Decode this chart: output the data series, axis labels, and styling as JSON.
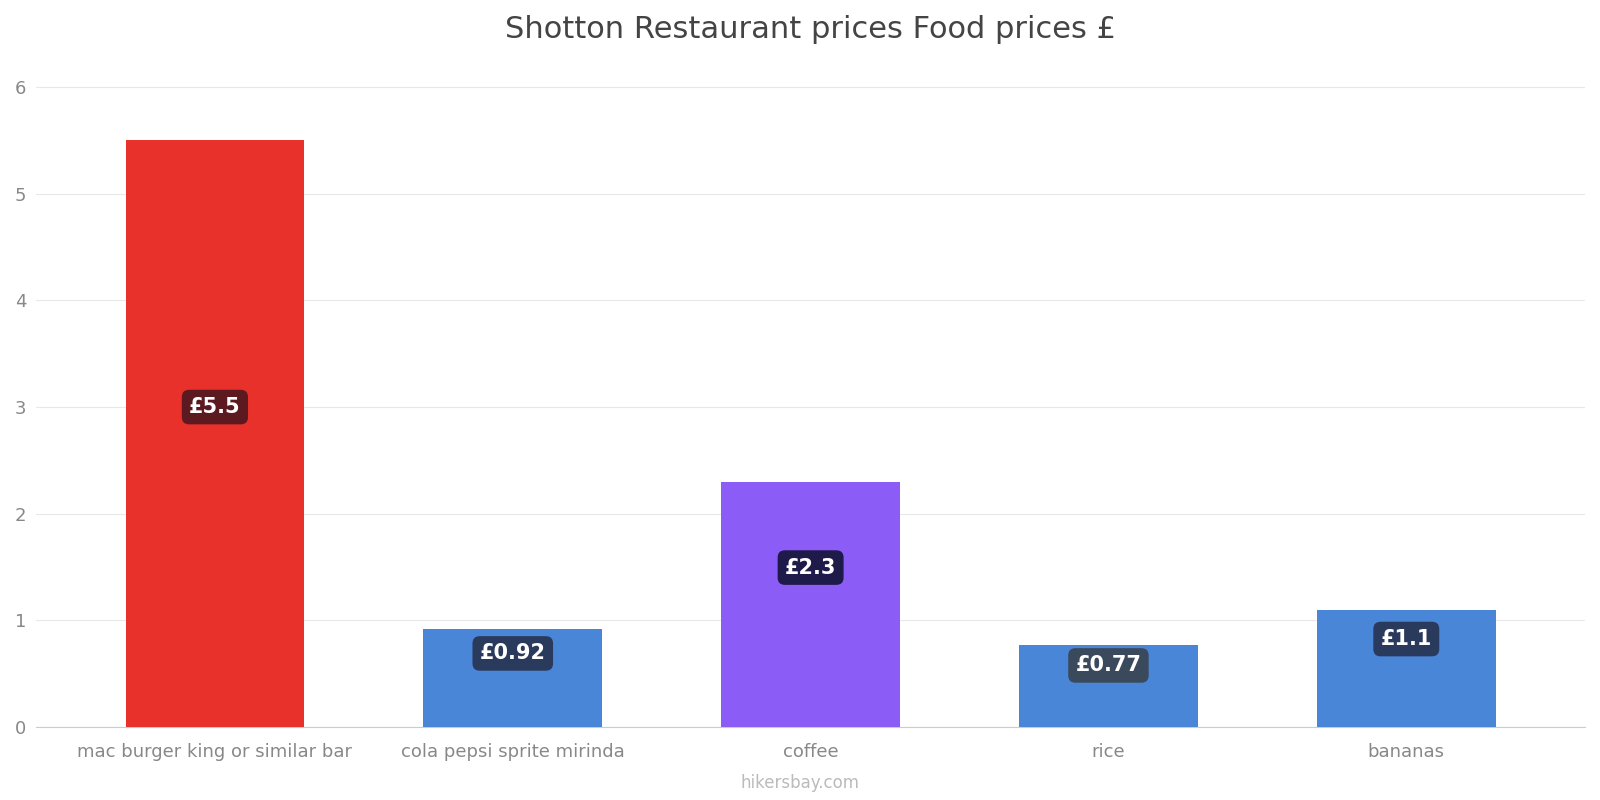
{
  "title": "Shotton Restaurant prices Food prices £",
  "categories": [
    "mac burger king or similar bar",
    "cola pepsi sprite mirinda",
    "coffee",
    "rice",
    "bananas"
  ],
  "values": [
    5.5,
    0.92,
    2.3,
    0.77,
    1.1
  ],
  "labels": [
    "£5.5",
    "£0.92",
    "£2.3",
    "£0.77",
    "£1.1"
  ],
  "bar_colors": [
    "#e8312a",
    "#4a86d8",
    "#8b5cf6",
    "#4a86d8",
    "#4a86d8"
  ],
  "label_box_colors": [
    "#5c1a20",
    "#2a3a5c",
    "#1e1a4a",
    "#3a4a5c",
    "#2a3a5c"
  ],
  "ylim": [
    0,
    6.2
  ],
  "yticks": [
    0,
    1,
    2,
    3,
    4,
    5,
    6
  ],
  "background_color": "#ffffff",
  "title_fontsize": 22,
  "tick_fontsize": 13,
  "label_fontsize": 15,
  "watermark": "hikersbay.com",
  "figsize": [
    16.0,
    8.0
  ],
  "dpi": 100
}
